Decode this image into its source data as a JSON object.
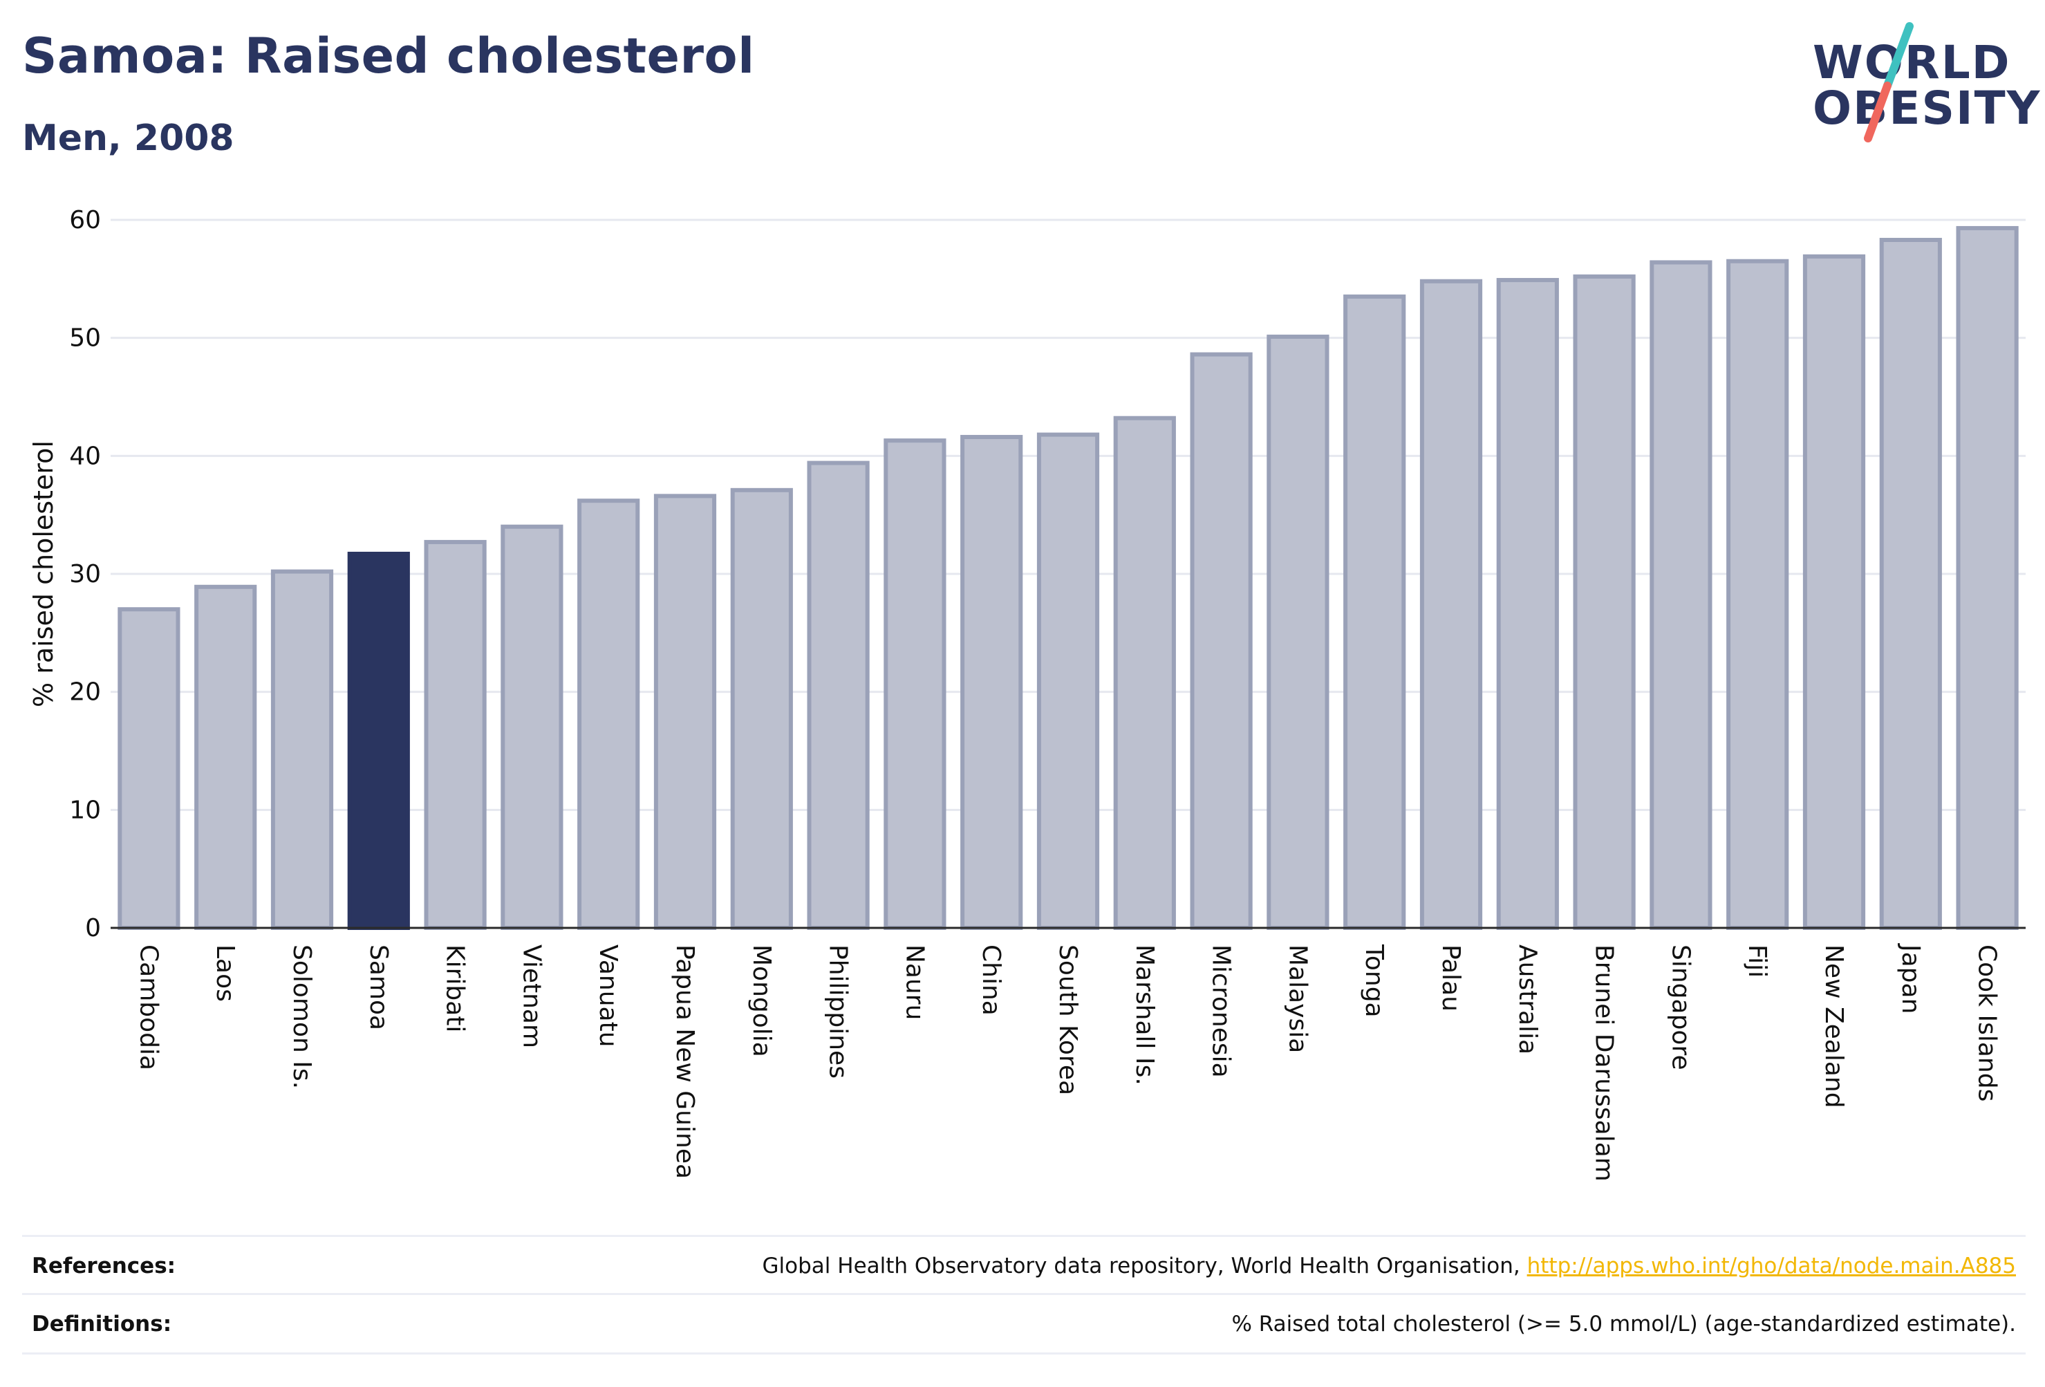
{
  "header": {
    "title": "Samoa: Raised cholesterol",
    "subtitle": "Men, 2008"
  },
  "logo": {
    "line1": "WORLD",
    "line2": "OBESITY",
    "slash_colors": [
      "#3fc1c0",
      "#f0675d"
    ]
  },
  "colors": {
    "bar_default": "#bcc0cf",
    "bar_outline": "#9aa1b8",
    "bar_highlight": "#2a3560",
    "title": "#2a3560",
    "grid": "#e6e8ef",
    "link": "#f2b705"
  },
  "chart_data": {
    "type": "bar",
    "title": "Samoa: Raised cholesterol",
    "subtitle": "Men, 2008",
    "xlabel": "",
    "ylabel": "% raised cholesterol",
    "ylim": [
      0,
      60
    ],
    "yticks": [
      0,
      10,
      20,
      30,
      40,
      50,
      60
    ],
    "grid": true,
    "highlight": "Samoa",
    "categories": [
      "Cambodia",
      "Laos",
      "Solomon Is.",
      "Samoa",
      "Kiribati",
      "Vietnam",
      "Vanuatu",
      "Papua New Guinea",
      "Mongolia",
      "Philippines",
      "Nauru",
      "China",
      "South Korea",
      "Marshall Is.",
      "Micronesia",
      "Malaysia",
      "Tonga",
      "Palau",
      "Australia",
      "Brunei Darussalam",
      "Singapore",
      "Fiji",
      "New Zealand",
      "Japan",
      "Cook Islands"
    ],
    "values": [
      27.0,
      28.9,
      30.2,
      31.7,
      32.7,
      34.0,
      36.2,
      36.6,
      37.1,
      39.4,
      41.3,
      41.6,
      41.8,
      43.2,
      48.6,
      50.1,
      53.5,
      54.8,
      54.9,
      55.2,
      56.4,
      56.5,
      56.9,
      58.3,
      59.3
    ]
  },
  "footer": {
    "references_label": "References:",
    "references_text": "Global Health Observatory data repository, World Health Organisation, ",
    "references_link": "http://apps.who.int/gho/data/node.main.A885",
    "definitions_label": "Definitions:",
    "definitions_text": "% Raised total cholesterol (>= 5.0 mmol/L) (age-standardized estimate)."
  }
}
